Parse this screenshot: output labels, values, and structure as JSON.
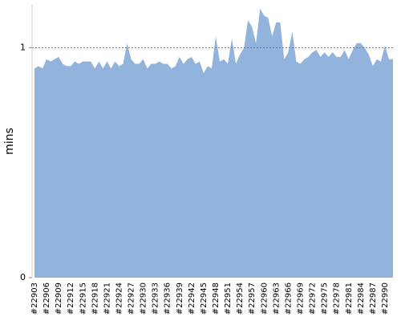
{
  "chart_data": {
    "type": "area",
    "y_label": "mins",
    "color": "#92b4dc",
    "categories": [
      "#22903",
      null,
      null,
      "#22906",
      null,
      null,
      "#22909",
      null,
      null,
      "#22912",
      null,
      null,
      "#22915",
      null,
      null,
      "#22918",
      null,
      null,
      "#22921",
      null,
      null,
      "#22924",
      null,
      null,
      "#22927",
      null,
      null,
      "#22930",
      null,
      null,
      "#22933",
      null,
      null,
      "#22936",
      null,
      null,
      "#22939",
      null,
      null,
      "#22942",
      null,
      null,
      "#22945",
      null,
      null,
      "#22948",
      null,
      null,
      "#22951",
      null,
      null,
      "#22954",
      null,
      null,
      "#22957",
      null,
      null,
      "#22960",
      null,
      null,
      "#22963",
      null,
      null,
      "#22966",
      null,
      null,
      "#22969",
      null,
      null,
      "#22972",
      null,
      null,
      "#22975",
      null,
      null,
      "#22978",
      null,
      null,
      "#22981",
      null,
      null,
      "#22984",
      null,
      null,
      "#22987",
      null,
      null,
      "#22990",
      null,
      null
    ],
    "values": [
      0.91,
      0.92,
      0.91,
      0.95,
      0.94,
      0.95,
      0.96,
      0.93,
      0.92,
      0.92,
      0.94,
      0.93,
      0.94,
      0.94,
      0.94,
      0.91,
      0.94,
      0.91,
      0.94,
      0.91,
      0.94,
      0.92,
      0.93,
      1.02,
      0.95,
      0.93,
      0.93,
      0.95,
      0.91,
      0.93,
      0.93,
      0.94,
      0.93,
      0.93,
      0.91,
      0.92,
      0.96,
      0.93,
      0.95,
      0.96,
      0.93,
      0.94,
      0.89,
      0.92,
      0.91,
      1.05,
      0.94,
      0.95,
      0.93,
      1.04,
      0.93,
      0.97,
      1.0,
      1.12,
      1.09,
      1.02,
      1.17,
      1.14,
      1.13,
      1.05,
      1.11,
      1.11,
      0.95,
      0.98,
      1.07,
      0.94,
      0.93,
      0.95,
      0.96,
      0.98,
      0.99,
      0.96,
      0.98,
      0.96,
      0.98,
      0.96,
      0.96,
      0.99,
      0.95,
      0.99,
      1.02,
      1.02,
      1.0,
      0.97,
      0.92,
      0.95,
      0.94,
      1.01,
      0.95,
      0.95
    ],
    "ylim": [
      0,
      1.19
    ],
    "yticks": [
      0,
      1
    ],
    "grid": true
  }
}
